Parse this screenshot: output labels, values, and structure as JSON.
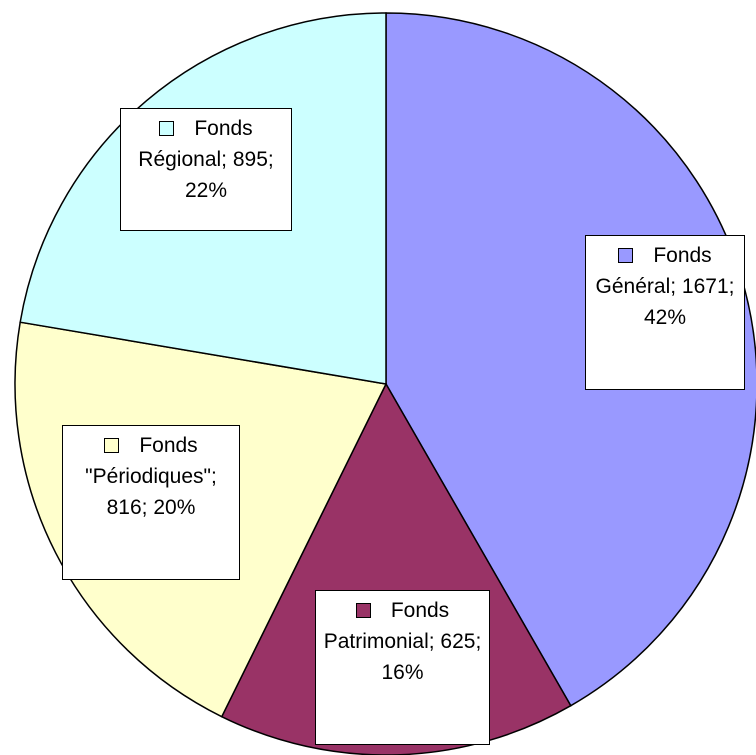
{
  "chart_data": {
    "type": "pie",
    "labels": [
      "Fonds Général; 1671; 42%",
      "Fonds Patrimonial; 625; 16%",
      "Fonds \"Périodiques\"; 816; 20%",
      "Fonds Régional; 895; 22%"
    ],
    "values": [
      1671,
      625,
      816,
      895
    ],
    "colors": [
      "#9999ff",
      "#993366",
      "#ffffcc",
      "#ccffff"
    ]
  }
}
